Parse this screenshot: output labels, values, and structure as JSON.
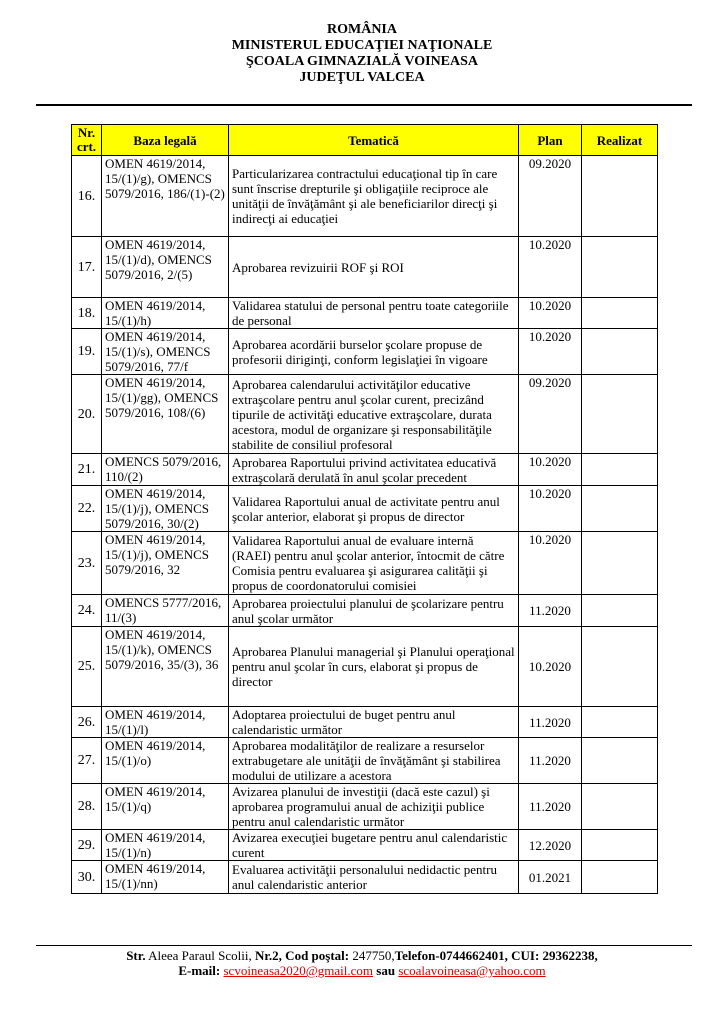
{
  "header": {
    "lines": [
      "ROMÂNIA",
      "MINISTERUL EDUCAŢIEI NAŢIONALE",
      "ŞCOALA GIMNAZIALĂ VOINEASA",
      "JUDEŢUL VALCEA"
    ]
  },
  "table": {
    "columns": {
      "nr": "Nr. crt.",
      "baza": "Baza legală",
      "tematica": "Tematică",
      "plan": "Plan",
      "realizat": "Realizat"
    },
    "header_color": "#ffff00",
    "rows": [
      {
        "nr": "16.",
        "baza": "OMEN 4619/2014, 15/(1)/g), OMENCS 5079/2016, 186/(1)-(2)",
        "tematica": "Particularizarea contractului educaţional tip în care sunt înscrise drepturile şi obligaţiile reciproce ale unităţii de învăţământ şi ale beneficiarilor direcţi şi indirecţi ai educaţiei",
        "plan": "09.2020",
        "realizat": ""
      },
      {
        "nr": "17.",
        "baza": "OMEN 4619/2014, 15/(1)/d), OMENCS 5079/2016, 2/(5)",
        "tematica": "Aprobarea revizuirii ROF şi ROI",
        "plan": "10.2020",
        "realizat": ""
      },
      {
        "nr": "18.",
        "baza": "OMEN 4619/2014, 15/(1)/h)",
        "tematica": "Validarea statului de personal pentru toate categoriile de personal",
        "plan": "10.2020",
        "realizat": ""
      },
      {
        "nr": "19.",
        "baza": "OMEN 4619/2014, 15/(1)/s), OMENCS 5079/2016, 77/f",
        "tematica": "Aprobarea acordării burselor şcolare propuse de profesorii diriginţi, conform legislaţiei în vigoare",
        "plan": "10.2020",
        "realizat": ""
      },
      {
        "nr": "20.",
        "baza": "OMEN 4619/2014, 15/(1)/gg), OMENCS 5079/2016, 108/(6)",
        "tematica": "Aprobarea calendarului activităţilor educative extraşcolare pentru anul şcolar curent, precizând tipurile de activităţi educative extraşcolare, durata acestora, modul de organizare şi responsabilităţile stabilite de consiliul profesoral",
        "plan": "09.2020",
        "realizat": ""
      },
      {
        "nr": "21.",
        "baza": "OMENCS 5079/2016, 110/(2)",
        "tematica": "Aprobarea Raportului privind activitatea educativă extraşcolară derulată în anul şcolar precedent",
        "plan": "10.2020",
        "realizat": ""
      },
      {
        "nr": "22.",
        "baza": "OMEN 4619/2014, 15/(1)/j), OMENCS 5079/2016, 30/(2)",
        "tematica": "Validarea Raportului anual de activitate pentru anul şcolar anterior, elaborat şi propus de director",
        "plan": "10.2020",
        "realizat": ""
      },
      {
        "nr": "23.",
        "baza": "OMEN 4619/2014, 15/(1)/j), OMENCS 5079/2016, 32",
        "tematica": "Validarea Raportului anual de evaluare internă (RAEI) pentru anul şcolar anterior, întocmit de către Comisia pentru evaluarea şi asigurarea calităţii şi propus de coordonatorului comisiei",
        "plan": "10.2020",
        "realizat": ""
      },
      {
        "nr": "24.",
        "baza": "OMENCS 5777/2016, 11/(3)",
        "tematica": "Aprobarea proiectului planului de şcolarizare pentru anul şcolar următor",
        "plan": "11.2020",
        "realizat": ""
      },
      {
        "nr": "25.",
        "baza": "OMEN 4619/2014, 15/(1)/k), OMENCS 5079/2016, 35/(3), 36",
        "tematica": "Aprobarea Planului managerial şi Planului operaţional pentru anul şcolar în curs, elaborat şi propus de director",
        "plan": "10.2020",
        "realizat": ""
      },
      {
        "nr": "26.",
        "baza": "OMEN 4619/2014, 15/(1)/l)",
        "tematica": "Adoptarea proiectului de buget pentru anul calendaristic următor",
        "plan": "11.2020",
        "realizat": ""
      },
      {
        "nr": "27.",
        "baza": "OMEN 4619/2014, 15/(1)/o)",
        "tematica": "Aprobarea modalităţilor de realizare a resurselor extrabugetare ale unităţii de învăţământ şi stabilirea modului de utilizare a acestora",
        "plan": "11.2020",
        "realizat": ""
      },
      {
        "nr": "28.",
        "baza": "OMEN 4619/2014, 15/(1)/q)",
        "tematica": "Avizarea planului de investiţii (dacă este cazul) şi aprobarea programului anual de achiziţii publice pentru anul calendaristic următor",
        "plan": "11.2020",
        "realizat": ""
      },
      {
        "nr": "29.",
        "baza": "OMEN 4619/2014, 15/(1)/n)",
        "tematica": "Avizarea execuţiei bugetare pentru anul calendaristic curent",
        "plan": "12.2020",
        "realizat": ""
      },
      {
        "nr": "30.",
        "baza": "OMEN 4619/2014, 15/(1)/nn)",
        "tematica": "Evaluarea activităţii personalului nedidactic pentru anul calendaristic anterior",
        "plan": "01.2021",
        "realizat": ""
      }
    ]
  },
  "footer": {
    "str_label": "Str.",
    "street": " Aleea Paraul Scolii, ",
    "nr_label": "Nr.2, Cod poştal:",
    "postal": " 247750,",
    "phone": "Telefon-0744662401, CUI: 29362238,",
    "email_label": "E-mail:",
    "email1": "scvoineasa2020@gmail.com",
    "sau": "sau",
    "email2": "scoalavoineasa@yahoo.com",
    "link_color": "#e00000"
  }
}
